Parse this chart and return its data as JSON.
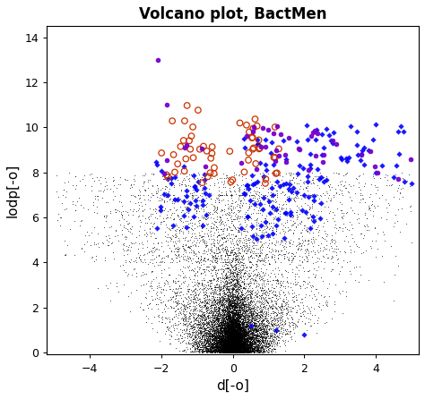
{
  "title": "Volcano plot, BactMen",
  "xlabel": "d[-o]",
  "ylabel": "lodp[-o]",
  "xlim": [
    -5.2,
    5.2
  ],
  "ylim": [
    -0.1,
    14.5
  ],
  "xticks": [
    -4,
    -2,
    0,
    2,
    4
  ],
  "yticks": [
    0,
    2,
    4,
    6,
    8,
    10,
    12,
    14
  ],
  "background_color": "#ffffff",
  "seed": 1234,
  "title_fontsize": 12,
  "axis_fontsize": 11,
  "tick_fontsize": 9
}
